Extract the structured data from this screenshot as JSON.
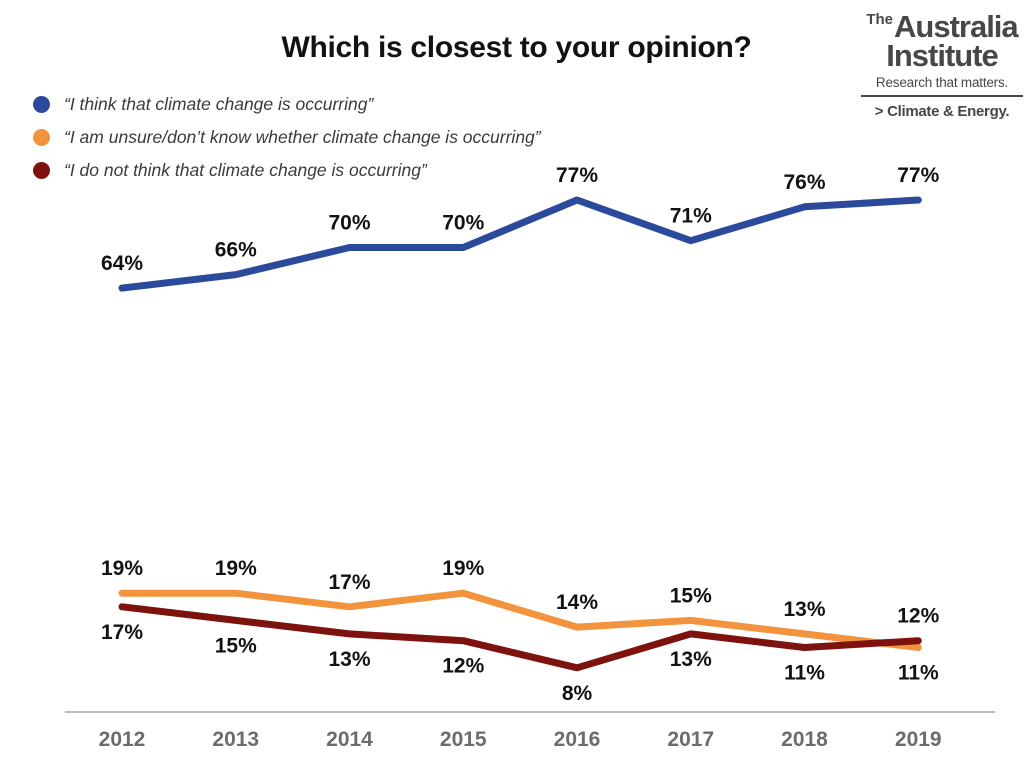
{
  "title": "Which is closest to your opinion?",
  "branding": {
    "the": "The",
    "name_line1": "Australia",
    "name_line2": "Institute",
    "tagline": "Research that matters.",
    "program": "> Climate & Energy."
  },
  "chart_data": {
    "type": "line",
    "title": "Which is closest to your opinion?",
    "x": [
      "2012",
      "2013",
      "2014",
      "2015",
      "2016",
      "2017",
      "2018",
      "2019"
    ],
    "series": [
      {
        "name": "“I think that climate change is occurring”",
        "color": "#2C4A9C",
        "values": [
          64,
          66,
          70,
          70,
          77,
          71,
          76,
          77
        ],
        "label_side": [
          "above",
          "above",
          "above",
          "above",
          "above",
          "above",
          "above",
          "above"
        ]
      },
      {
        "name": "“I am unsure/don’t know whether climate change is occurring”",
        "color": "#F2943E",
        "values": [
          19,
          19,
          17,
          19,
          14,
          15,
          13,
          11
        ],
        "label_side": [
          "above",
          "above",
          "above",
          "above",
          "above",
          "above",
          "above",
          "below"
        ]
      },
      {
        "name": "“I do not think that climate change is occurring”",
        "color": "#7D120E",
        "values": [
          17,
          15,
          13,
          12,
          8,
          13,
          11,
          12
        ],
        "label_side": [
          "below",
          "below",
          "below",
          "below",
          "below",
          "below",
          "below",
          "above"
        ]
      }
    ],
    "unit": "%",
    "ylim": [
      0,
      100
    ],
    "grid": false,
    "legend_position": "top-left",
    "axis_color": "#A8A8A8",
    "year_label_color": "#6C6C70"
  }
}
